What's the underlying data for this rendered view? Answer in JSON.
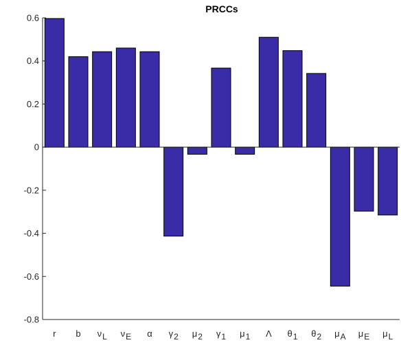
{
  "chart_data": {
    "type": "bar",
    "title": "PRCCs",
    "xlabel": "",
    "ylabel": "",
    "categories": [
      {
        "base": "r",
        "sub": ""
      },
      {
        "base": "b",
        "sub": ""
      },
      {
        "base": "ν",
        "sub": "L"
      },
      {
        "base": "ν",
        "sub": "E"
      },
      {
        "base": "α",
        "sub": ""
      },
      {
        "base": "γ",
        "sub": "2"
      },
      {
        "base": "μ",
        "sub": "2"
      },
      {
        "base": "γ",
        "sub": "1"
      },
      {
        "base": "μ",
        "sub": "1"
      },
      {
        "base": "Λ",
        "sub": ""
      },
      {
        "base": "θ",
        "sub": "1"
      },
      {
        "base": "θ",
        "sub": "2"
      },
      {
        "base": "μ",
        "sub": "A"
      },
      {
        "base": "μ",
        "sub": "E"
      },
      {
        "base": "μ",
        "sub": "L"
      }
    ],
    "values": [
      0.597,
      0.42,
      0.443,
      0.46,
      0.443,
      -0.413,
      -0.033,
      0.367,
      -0.033,
      0.51,
      0.448,
      0.342,
      -0.645,
      -0.297,
      -0.315
    ],
    "ylim": [
      -0.8,
      0.6
    ],
    "yticks": [
      -0.8,
      -0.6,
      -0.4,
      -0.2,
      0,
      0.2,
      0.4,
      0.6
    ],
    "ytick_labels": [
      "-0.8",
      "-0.6",
      "-0.4",
      "-0.2",
      "0",
      "0.2",
      "0.4",
      "0.6"
    ],
    "grid": false,
    "legend": "none",
    "bar_color": "#3a2ba6",
    "edge_color": "#000000",
    "axis_color": "#262626"
  }
}
